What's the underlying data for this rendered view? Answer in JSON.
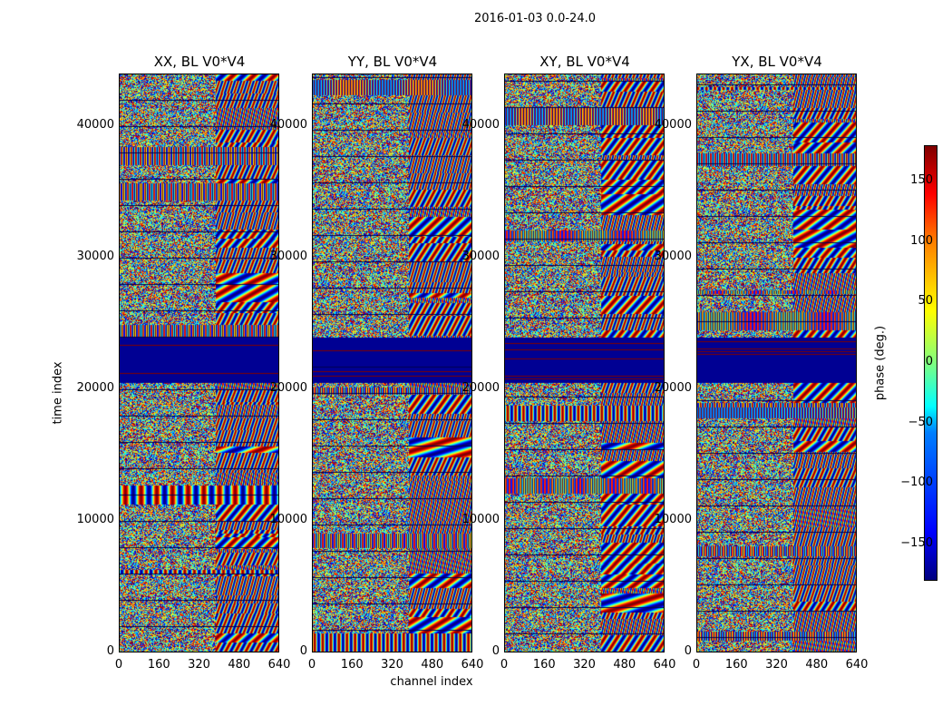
{
  "figure": {
    "suptitle": "2016-01-03 0.0-24.0"
  },
  "axes": {
    "ylabel": "time index",
    "xlabel": "channel index",
    "colorbar_label": "phase (deg.)"
  },
  "chart_data": {
    "type": "heatmap",
    "panels": [
      {
        "title": "XX, BL V0*V4"
      },
      {
        "title": "YY, BL V0*V4"
      },
      {
        "title": "XY, BL V0*V4"
      },
      {
        "title": "YX, BL V0*V4"
      }
    ],
    "x_ticks": [
      "0",
      "160",
      "320",
      "480",
      "640"
    ],
    "x_tick_values": [
      0,
      160,
      320,
      480,
      640
    ],
    "xlim": [
      0,
      640
    ],
    "y_ticks": [
      "0",
      "10000",
      "20000",
      "30000",
      "40000"
    ],
    "y_tick_values": [
      0,
      10000,
      20000,
      30000,
      40000
    ],
    "ylim": [
      0,
      44000
    ],
    "colorbar": {
      "ticks": [
        "−150",
        "−100",
        "−50",
        "0",
        "50",
        "100",
        "150"
      ],
      "tick_values": [
        -150,
        -100,
        -50,
        0,
        50,
        100,
        150
      ],
      "range": [
        -180,
        180
      ],
      "colormap": "jet"
    }
  }
}
